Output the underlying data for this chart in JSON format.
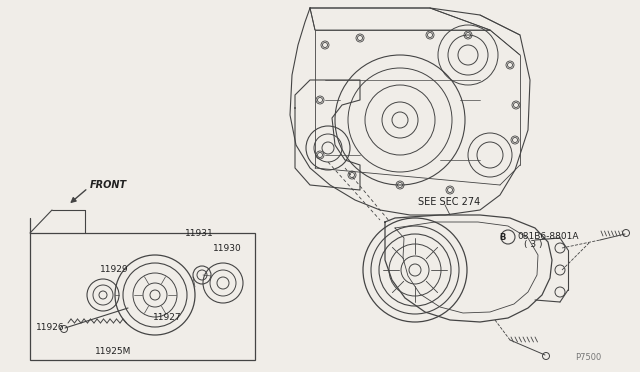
{
  "bg_color": "#f0ede8",
  "line_color": "#444444",
  "label_color": "#222222",
  "parts": [
    "11925M",
    "11926",
    "11927",
    "11929",
    "11930",
    "11931"
  ],
  "bolt_label": "081B6-8801A",
  "bolt_qty": "( 3 )",
  "see_sec": "SEE SEC 274",
  "front_text": "FRONT",
  "ref_code": "P7500"
}
